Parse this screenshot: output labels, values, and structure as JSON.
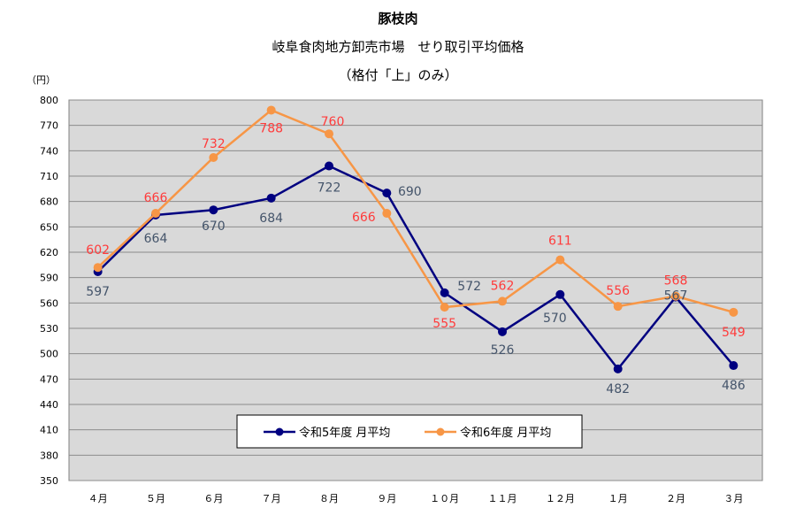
{
  "chart_data": {
    "type": "line",
    "title": "豚枝肉",
    "subtitle": "岐阜食肉地方卸売市場　せり取引平均価格",
    "subtitle2": "（格付「上」のみ）",
    "ylabel": "（円）",
    "categories": [
      "４月",
      "５月",
      "６月",
      "７月",
      "８月",
      "９月",
      "１０月",
      "１１月",
      "１２月",
      "１月",
      "２月",
      "３月"
    ],
    "ylim": [
      350,
      800
    ],
    "yticks": [
      350,
      380,
      410,
      440,
      470,
      500,
      530,
      560,
      590,
      620,
      650,
      680,
      710,
      740,
      770,
      800
    ],
    "grid": true,
    "legend_position": "bottom-center",
    "series": [
      {
        "name": "令和5年度 月平均",
        "color": "#000080",
        "label_color": "#44546a",
        "values": [
          597,
          664,
          670,
          684,
          722,
          690,
          572,
          526,
          570,
          482,
          567,
          486
        ]
      },
      {
        "name": "令和6年度 月平均",
        "color": "#f79646",
        "label_color": "#ff3b3b",
        "values": [
          602,
          666,
          732,
          788,
          760,
          666,
          555,
          562,
          611,
          556,
          568,
          549
        ]
      }
    ]
  }
}
